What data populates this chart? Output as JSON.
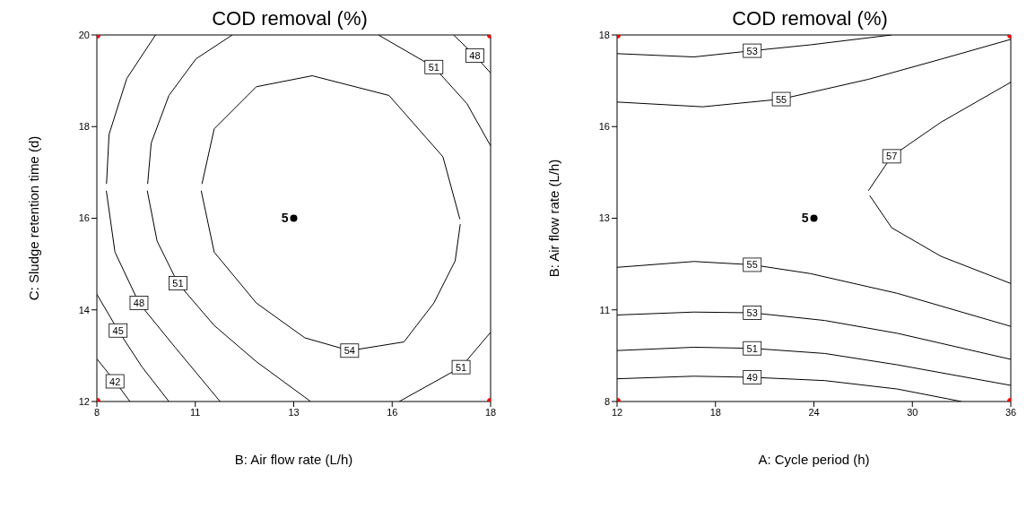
{
  "chart_data": [
    {
      "type": "line",
      "title": "COD removal (%)",
      "xlabel": "B: Air flow rate (L/h)",
      "ylabel": "C: Sludge retention time (d)",
      "xlim": [
        8,
        18
      ],
      "xticks": [
        8,
        {
          "value": 10.5,
          "label": "11"
        },
        13,
        {
          "value": 15.5,
          "label": "16"
        },
        18
      ],
      "ylim": [
        12,
        20
      ],
      "yticks": [
        12,
        14,
        16,
        18,
        20
      ],
      "grid": false,
      "legend": false,
      "annotations": [
        {
          "text": "5",
          "x": 13,
          "y": 16
        }
      ],
      "series": [
        {
          "type": "line",
          "color": "#000000",
          "marker": "none",
          "x": [
            10.67,
            10.98,
            12.05,
            13.47,
            15.42,
            16.79,
            17.22
          ],
          "values": [
            16.75,
            17.95,
            18.87,
            19.11,
            18.68,
            17.34,
            15.98
          ]
        },
        {
          "name": "54",
          "type": "line",
          "color": "#000000",
          "marker": "none",
          "x": [
            10.65,
            10.98,
            12.05,
            13.28,
            14.42,
            15.8,
            16.56,
            17.1,
            17.23
          ],
          "values": [
            16.6,
            15.26,
            14.15,
            13.39,
            13.11,
            13.3,
            14.15,
            15.07,
            15.87
          ]
        },
        {
          "type": "line",
          "color": "#000000",
          "marker": "none",
          "x": [
            9.29,
            9.38,
            9.83,
            10.52,
            11.44
          ],
          "values": [
            16.75,
            17.64,
            18.68,
            19.48,
            20
          ]
        },
        {
          "name": "51",
          "type": "line",
          "color": "#000000",
          "marker": "none",
          "x": [
            9.28,
            9.53,
            10.06,
            10.98,
            12.05,
            13.43
          ],
          "values": [
            16.6,
            15.5,
            14.58,
            13.66,
            12.87,
            12
          ]
        },
        {
          "name": "51",
          "type": "line",
          "color": "#000000",
          "marker": "none",
          "x": [
            15.15,
            16.56,
            17.4,
            18
          ],
          "values": [
            20,
            19.3,
            18.5,
            17.58
          ]
        },
        {
          "name": "51",
          "type": "line",
          "color": "#000000",
          "marker": "none",
          "x": [
            15.68,
            17.25,
            18
          ],
          "values": [
            12,
            12.75,
            13.51
          ]
        },
        {
          "type": "line",
          "color": "#000000",
          "marker": "none",
          "x": [
            8.245,
            8.31,
            8.76,
            9.49
          ],
          "values": [
            16.75,
            17.83,
            19.05,
            20
          ]
        },
        {
          "name": "48",
          "type": "line",
          "color": "#000000",
          "marker": "none",
          "x": [
            8.24,
            8.46,
            9.07,
            9.99,
            11.13
          ],
          "values": [
            16.6,
            15.26,
            14.15,
            13.18,
            12
          ]
        },
        {
          "name": "48",
          "type": "line",
          "color": "#000000",
          "marker": "none",
          "x": [
            17.06,
            17.6,
            18
          ],
          "values": [
            20,
            19.55,
            19.17
          ]
        },
        {
          "name": "45",
          "type": "line",
          "color": "#000000",
          "marker": "none",
          "x": [
            8,
            8.54,
            9.15,
            9.83
          ],
          "values": [
            14.34,
            13.55,
            12.75,
            12
          ]
        },
        {
          "name": "42",
          "type": "line",
          "color": "#000000",
          "marker": "none",
          "x": [
            8,
            8.46,
            8.84
          ],
          "values": [
            12.93,
            12.44,
            12
          ]
        },
        {
          "type": "scatter",
          "color": "#ff0000",
          "marker": "circle",
          "x": [
            8,
            8,
            18,
            18
          ],
          "values": [
            12,
            20,
            12,
            20
          ]
        },
        {
          "type": "scatter",
          "color": "#000000",
          "marker": "circle",
          "x": [
            13
          ],
          "values": [
            16
          ]
        }
      ]
    },
    {
      "type": "line",
      "title": "COD removal (%)",
      "xlabel": "A: Cycle period (h)",
      "ylabel": "B: Air flow rate (L/h)",
      "xlim": [
        12,
        36
      ],
      "xticks": [
        12,
        18,
        24,
        30,
        36
      ],
      "ylim": [
        8,
        18
      ],
      "yticks": [
        8,
        {
          "value": 10.5,
          "label": "11"
        },
        13,
        {
          "value": 15.5,
          "label": "16"
        },
        18
      ],
      "grid": false,
      "legend": false,
      "annotations": [
        {
          "text": "5",
          "x": 24,
          "y": 13
        }
      ],
      "series": [
        {
          "name": "53",
          "type": "line",
          "color": "#000000",
          "marker": "none",
          "x": [
            12,
            16.69,
            20.24,
            23.78,
            28.74
          ],
          "values": [
            17.49,
            17.4,
            17.57,
            17.73,
            18
          ]
        },
        {
          "name": "55",
          "type": "line",
          "color": "#000000",
          "marker": "none",
          "x": [
            12,
            17.22,
            22.01,
            27.32,
            31.75,
            36
          ],
          "values": [
            16.17,
            16.04,
            16.25,
            16.79,
            17.34,
            17.88
          ]
        },
        {
          "name": "57",
          "type": "line",
          "color": "#000000",
          "marker": "none",
          "x": [
            27.32,
            28.74,
            31.75,
            36
          ],
          "values": [
            13.75,
            14.69,
            15.62,
            16.71
          ]
        },
        {
          "type": "line",
          "color": "#000000",
          "marker": "none",
          "x": [
            27.4,
            28.74,
            31.75,
            36
          ],
          "values": [
            13.62,
            12.74,
            11.96,
            11.22
          ]
        },
        {
          "name": "55",
          "type": "line",
          "color": "#000000",
          "marker": "none",
          "x": [
            12,
            16.69,
            20.24,
            23.78,
            29.09,
            36
          ],
          "values": [
            11.66,
            11.82,
            11.73,
            11.49,
            10.95,
            10.05
          ]
        },
        {
          "name": "53",
          "type": "line",
          "color": "#000000",
          "marker": "none",
          "x": [
            12,
            16.69,
            20.24,
            24.66,
            29.09,
            36
          ],
          "values": [
            10.36,
            10.44,
            10.42,
            10.21,
            9.86,
            9.15
          ]
        },
        {
          "name": "51",
          "type": "line",
          "color": "#000000",
          "marker": "none",
          "x": [
            12,
            16.69,
            20.24,
            24.66,
            29.09,
            36
          ],
          "values": [
            9.39,
            9.48,
            9.45,
            9.31,
            9.0,
            8.44
          ]
        },
        {
          "name": "49",
          "type": "line",
          "color": "#000000",
          "marker": "none",
          "x": [
            12,
            16.69,
            20.24,
            24.66,
            29.09,
            32.99
          ],
          "values": [
            8.62,
            8.69,
            8.66,
            8.57,
            8.34,
            8
          ]
        },
        {
          "type": "scatter",
          "color": "#ff0000",
          "marker": "circle",
          "x": [
            12,
            12,
            36,
            36
          ],
          "values": [
            8,
            18,
            8,
            18
          ]
        },
        {
          "type": "scatter",
          "color": "#000000",
          "marker": "circle",
          "x": [
            24
          ],
          "values": [
            13
          ]
        }
      ]
    }
  ]
}
